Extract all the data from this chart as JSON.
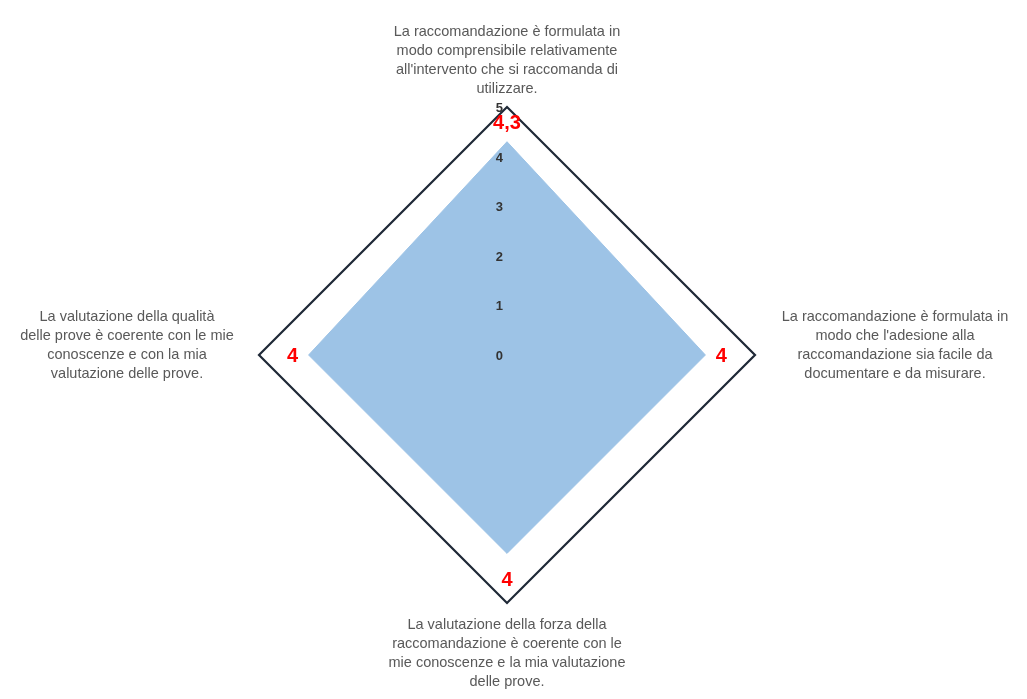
{
  "chart_data": {
    "type": "radar",
    "categories": [
      "La raccomandazione è formulata in modo comprensibile relativamente all'intervento che si raccomanda di utilizzare.",
      "La raccomandazione è formulata in modo che l'adesione alla raccomandazione sia facile da documentare e da misurare.",
      "La valutazione della forza della raccomandazione è coerente con le mie conoscenze e la mia valutazione delle prove.",
      "La valutazione della qualità delle prove è coerente con le mie conoscenze e con la mia valutazione delle prove."
    ],
    "series": [
      {
        "color": "#9dc3e6",
        "values": [
          4.3,
          4,
          4,
          4
        ],
        "value_labels": [
          "4,3",
          "4",
          "4",
          "4"
        ]
      }
    ],
    "ylim": [
      0,
      5
    ],
    "yticks": [
      0,
      1,
      2,
      3,
      4,
      5
    ],
    "grid": false
  }
}
